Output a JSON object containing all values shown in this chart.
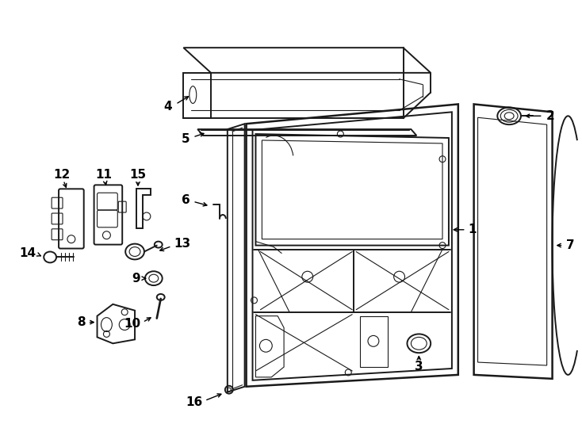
{
  "bg_color": "#ffffff",
  "line_color": "#1a1a1a",
  "lw_main": 1.4,
  "lw_thin": 0.8,
  "lw_thick": 1.8,
  "fs": 11,
  "fs_small": 9
}
